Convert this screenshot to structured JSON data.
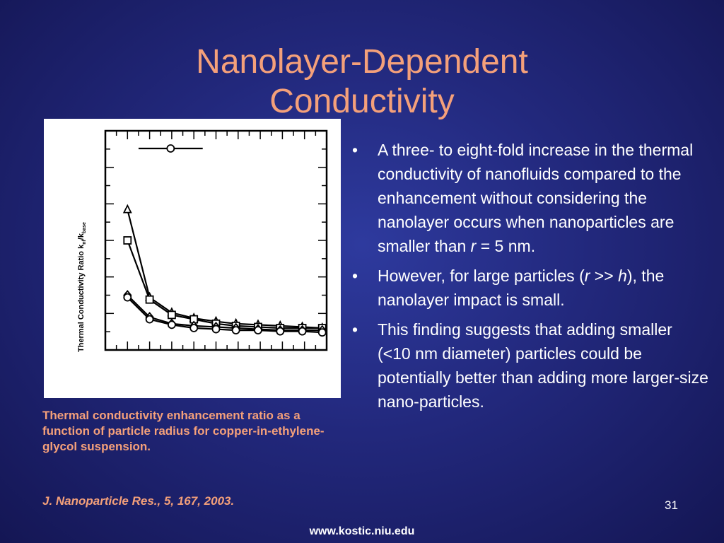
{
  "slide": {
    "title_line1": "Nanolayer-Dependent",
    "title_line2": "Conductivity",
    "page_number": "31",
    "footer_url": "www.kostic.niu.edu",
    "colors": {
      "title": "#f4a07a",
      "caption": "#f4a07a",
      "body_text": "#ffffff",
      "background": "#22287c"
    }
  },
  "figure": {
    "caption": "Thermal conductivity enhancement ratio as a function of particle radius for copper-in-ethylene-glycol suspension.",
    "citation": "J. Nanoparticle Res., 5, 167, 2003."
  },
  "bullets": [
    {
      "mark": "•",
      "parts": [
        {
          "text": "A three- to eight-fold increase in the thermal conductivity of nanofluids compared to the enhancement without considering the nanolayer occurs when nanoparticles are smaller than "
        },
        {
          "text": "r",
          "italic": true
        },
        {
          "text": " = 5 nm."
        }
      ]
    },
    {
      "mark": "•",
      "parts": [
        {
          "text": "However, for large particles ("
        },
        {
          "text": "r",
          "italic": true
        },
        {
          "text": " >> "
        },
        {
          "text": "h",
          "italic": true
        },
        {
          "text": "), the nanolayer impact is small."
        }
      ]
    },
    {
      "mark": "•",
      "parts": [
        {
          "text": "This finding suggests that adding smaller (<10 nm diameter) particles could be potentially better than adding more larger-size nano-particles."
        }
      ]
    }
  ],
  "chart_data": {
    "type": "line",
    "ylabel": {
      "main": "Thermal Conductivity Ratio k",
      "sub1": "nf",
      "slash": "/k",
      "sub2": "base"
    },
    "xlabel": "",
    "tick_labels_shown": false,
    "x_axis_units": "relative plot positions 0-1 (no tick labels printed)",
    "y_axis_units": "relative plot positions 0-1 (no tick labels printed)",
    "legend": {
      "placement": "top-left",
      "entries": [
        {
          "marker": "circle",
          "name": ""
        }
      ]
    },
    "series": [
      {
        "name": "",
        "marker": "triangle",
        "x": [
          0.1,
          0.2,
          0.3,
          0.4,
          0.5,
          0.59,
          0.69,
          0.79,
          0.89,
          0.98
        ],
        "y": [
          0.64,
          0.24,
          0.17,
          0.145,
          0.13,
          0.12,
          0.115,
          0.11,
          0.105,
          0.1
        ]
      },
      {
        "name": "",
        "marker": "square",
        "x": [
          0.1,
          0.2,
          0.3,
          0.4,
          0.5,
          0.59,
          0.69,
          0.79,
          0.89,
          0.98
        ],
        "y": [
          0.5,
          0.23,
          0.16,
          0.14,
          0.12,
          0.11,
          0.105,
          0.1,
          0.1,
          0.1
        ]
      },
      {
        "name": "",
        "marker": "diamond",
        "x": [
          0.1,
          0.2,
          0.3,
          0.4,
          0.5,
          0.59,
          0.69,
          0.79,
          0.89,
          0.98
        ],
        "y": [
          0.25,
          0.15,
          0.12,
          0.11,
          0.105,
          0.1,
          0.095,
          0.09,
          0.09,
          0.09
        ]
      },
      {
        "name": "",
        "marker": "circle",
        "x": [
          0.1,
          0.2,
          0.3,
          0.4,
          0.5,
          0.59,
          0.69,
          0.79,
          0.89,
          0.98
        ],
        "y": [
          0.24,
          0.14,
          0.115,
          0.1,
          0.095,
          0.09,
          0.09,
          0.085,
          0.085,
          0.08
        ]
      }
    ]
  }
}
